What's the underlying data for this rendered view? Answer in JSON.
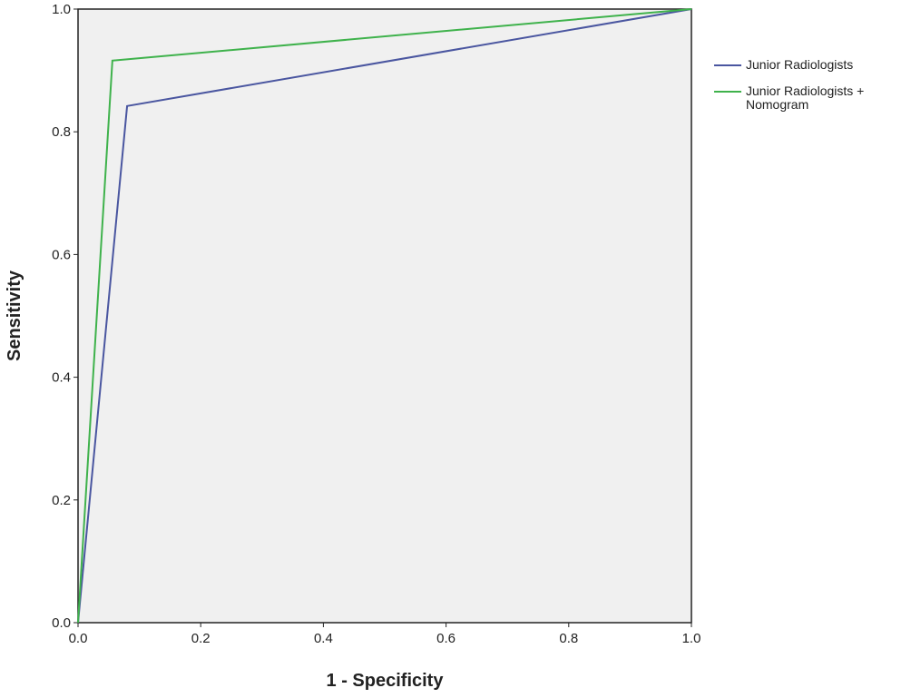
{
  "chart_data": {
    "type": "line",
    "xlabel": "1 - Specificity",
    "ylabel": "Sensitivity",
    "xlim": [
      0,
      1
    ],
    "ylim": [
      0,
      1
    ],
    "xticks": [
      {
        "value": 0,
        "label": "0.0"
      },
      0.2,
      0.4,
      0.6,
      0.8,
      {
        "value": 1,
        "label": "1.0"
      }
    ],
    "yticks": [
      {
        "value": 0,
        "label": "0.0"
      },
      0.2,
      0.4,
      0.6,
      0.8,
      {
        "value": 1,
        "label": "1.0"
      }
    ],
    "legend": "right",
    "series": [
      {
        "name": "Junior Radiologists",
        "color": "#4a56a0",
        "x": [
          0,
          0.08,
          1
        ],
        "values": [
          0,
          0.842,
          1
        ]
      },
      {
        "name": "Junior Radiologists + Nomogram",
        "color": "#3fb24c",
        "x": [
          0,
          0.056,
          1
        ],
        "values": [
          0,
          0.916,
          1
        ]
      }
    ]
  }
}
